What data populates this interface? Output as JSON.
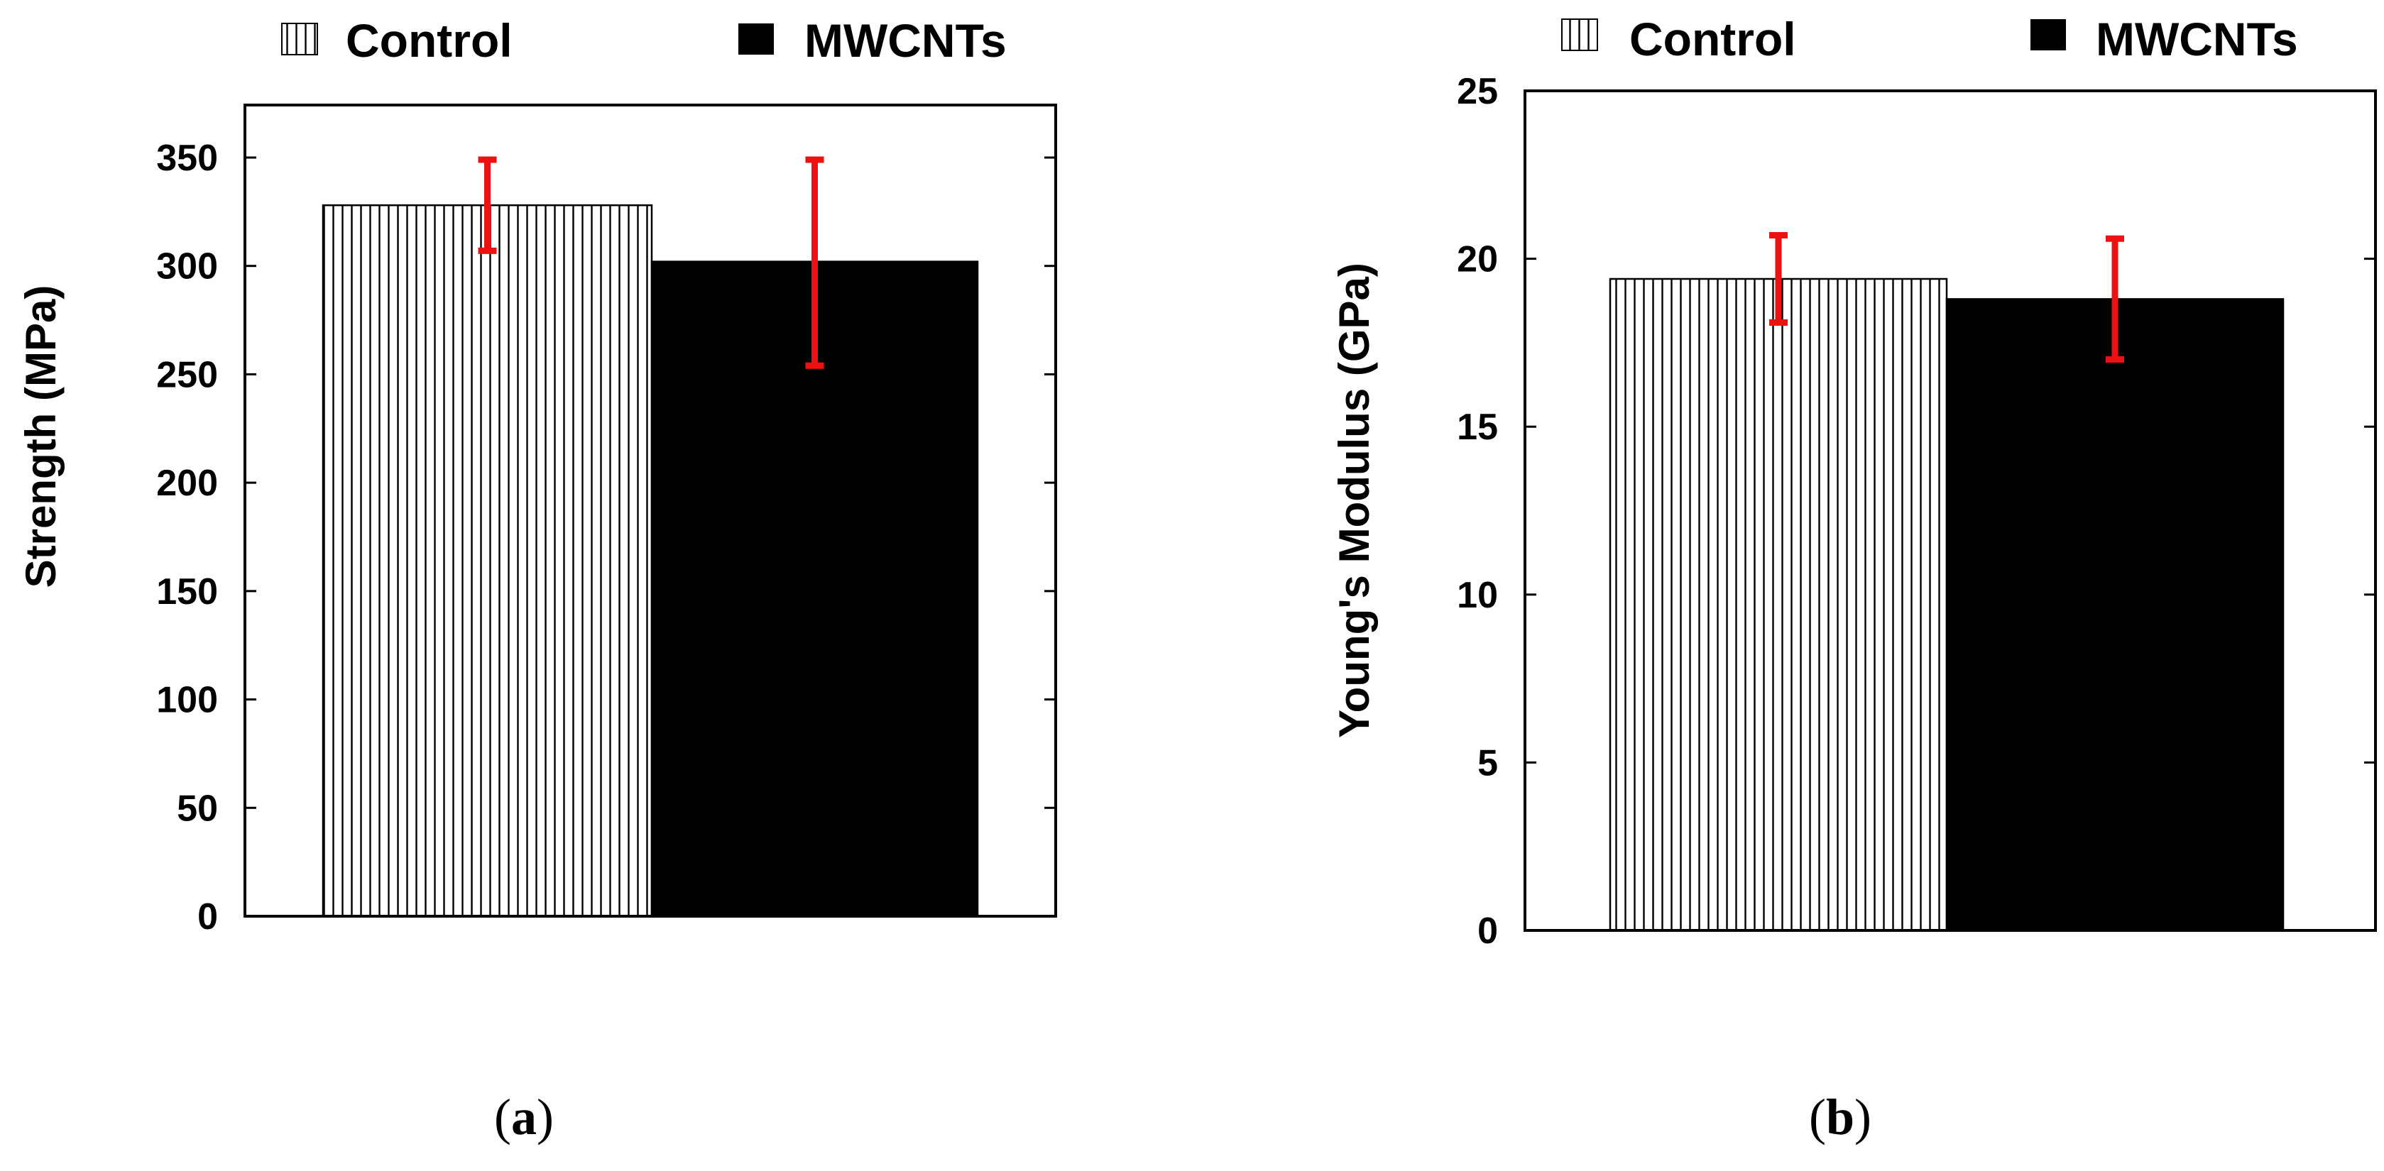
{
  "chart_data": [
    {
      "type": "bar",
      "panel_label_open": "(",
      "panel_label_letter": "a",
      "panel_label_close": ")",
      "categories": [
        "Control",
        "MWCNTs"
      ],
      "values": [
        328,
        302
      ],
      "error_low": [
        307,
        254
      ],
      "error_high": [
        349,
        349
      ],
      "ylabel": "Strength (MPa)",
      "xlabel": "",
      "ylim": [
        0,
        380
      ],
      "yticks": [
        0,
        50,
        100,
        150,
        200,
        250,
        300,
        350
      ],
      "legend": [
        {
          "name": "Control",
          "style": "vertical-hatch"
        },
        {
          "name": "MWCNTs",
          "style": "solid-black"
        }
      ],
      "legend_position": "top",
      "error_color": "#ee1111"
    },
    {
      "type": "bar",
      "panel_label_open": "(",
      "panel_label_letter": "b",
      "panel_label_close": ")",
      "categories": [
        "Control",
        "MWCNTs"
      ],
      "values": [
        19.4,
        18.8
      ],
      "error_low": [
        18.1,
        17.0
      ],
      "error_high": [
        20.7,
        20.6
      ],
      "ylabel": "Young's Modulus (GPa)",
      "xlabel": "",
      "ylim": [
        0,
        25
      ],
      "yticks": [
        0,
        5,
        10,
        15,
        20,
        25
      ],
      "legend": [
        {
          "name": "Control",
          "style": "vertical-hatch"
        },
        {
          "name": "MWCNTs",
          "style": "solid-black"
        }
      ],
      "legend_position": "top",
      "error_color": "#ee1111"
    }
  ]
}
